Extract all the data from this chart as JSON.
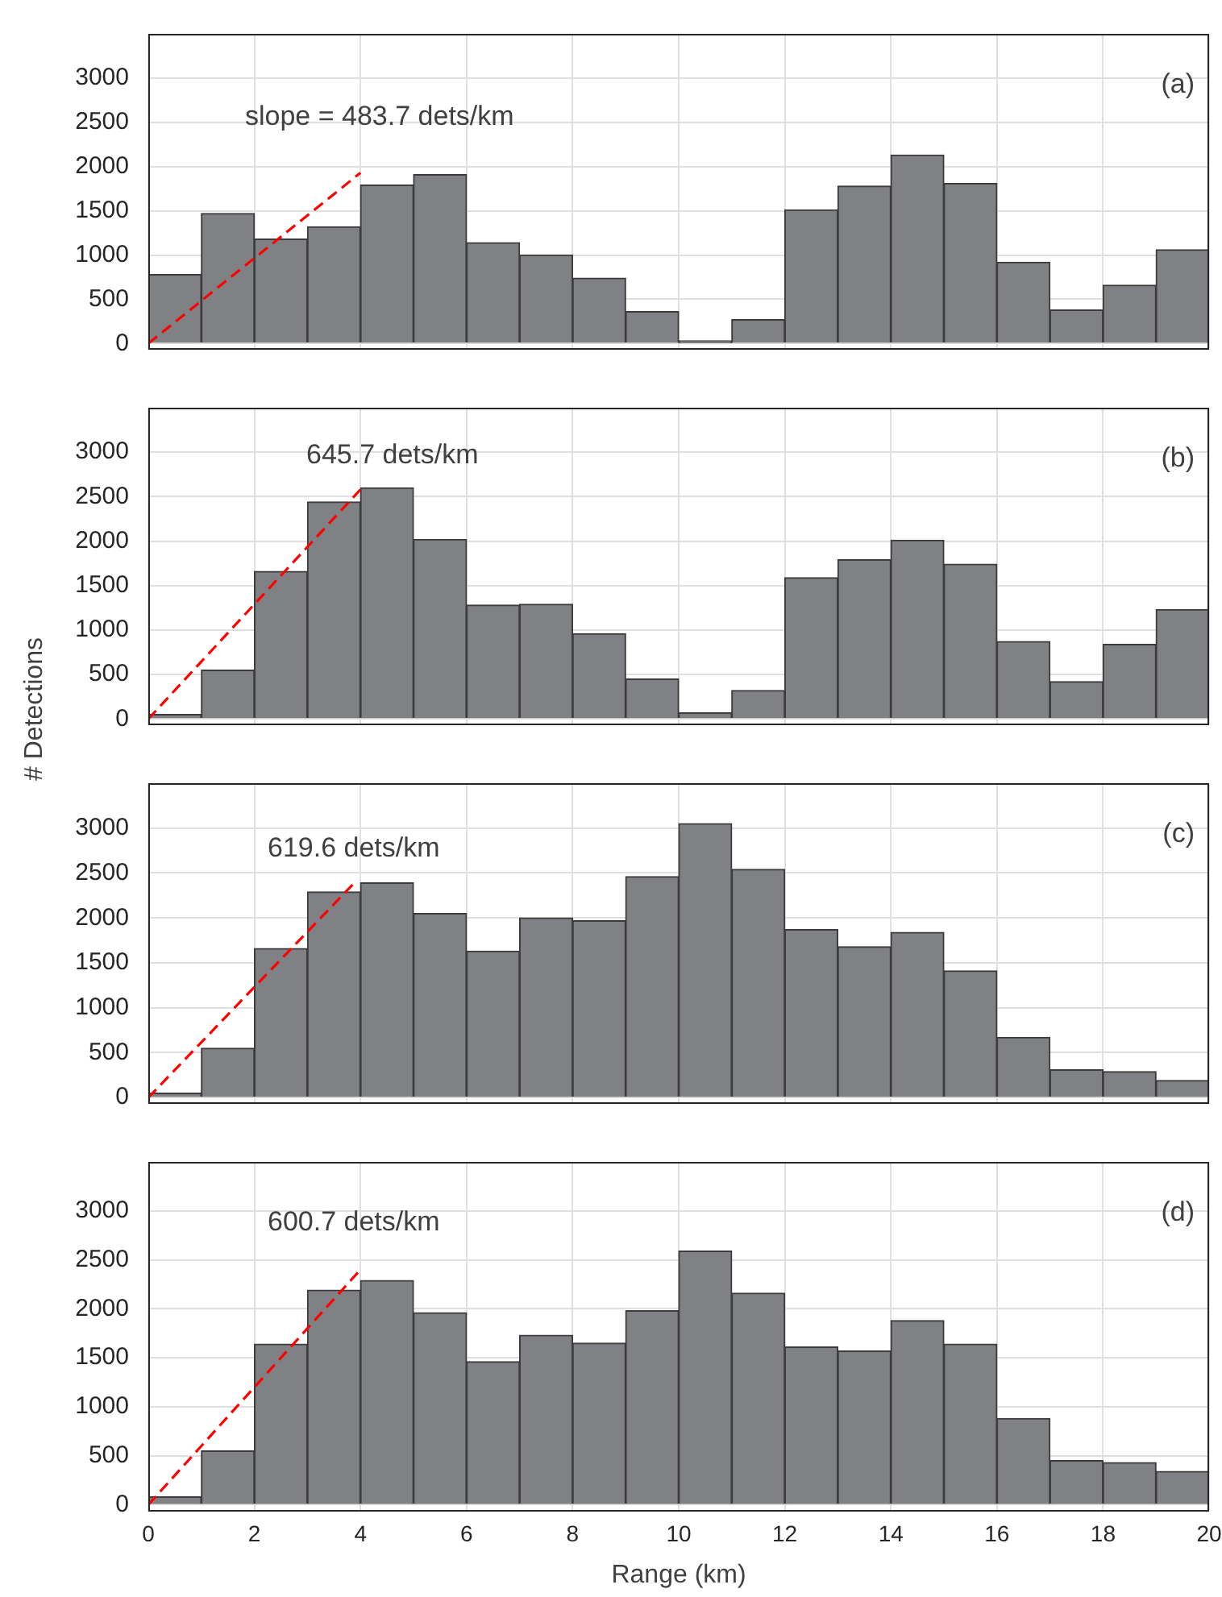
{
  "chart_data": [
    {
      "type": "histogram",
      "annotations": [
        "slope = 483.7 dets/km",
        "(a)"
      ],
      "bins": [
        0,
        1,
        2,
        3,
        4,
        5,
        6,
        7,
        8,
        9,
        10,
        11,
        12,
        13,
        14,
        15,
        16,
        17,
        18,
        19,
        20
      ],
      "xlim": [
        0,
        20
      ],
      "xticks": [
        0,
        2,
        4,
        6,
        8,
        10,
        12,
        14,
        16,
        18,
        20
      ],
      "ylim": [
        -70,
        3500
      ],
      "yticks": [
        0,
        500,
        1000,
        1500,
        2000,
        2500,
        3000
      ],
      "grid": true,
      "tick_labels": "y",
      "series": [
        {
          "color": "#808184",
          "values": [
            780,
            1470,
            1180,
            1320,
            1790,
            1910,
            1140,
            1000,
            740,
            360,
            30,
            270,
            1510,
            1780,
            2130,
            1810,
            920,
            380,
            660,
            1060
          ]
        },
        {
          "type": "line",
          "x": [
            0,
            4
          ],
          "values": [
            0,
            1930
          ],
          "color": "#ff0000",
          "line_style": "dashed"
        }
      ]
    },
    {
      "type": "histogram",
      "ylabel": "# Detections",
      "annotations": [
        "645.7 dets/km",
        "(b)"
      ],
      "bins": [
        0,
        1,
        2,
        3,
        4,
        5,
        6,
        7,
        8,
        9,
        10,
        11,
        12,
        13,
        14,
        15,
        16,
        17,
        18,
        19,
        20
      ],
      "xlim": [
        0,
        20
      ],
      "xticks": [
        0,
        2,
        4,
        6,
        8,
        10,
        12,
        14,
        16,
        18,
        20
      ],
      "ylim": [
        -70,
        3500
      ],
      "yticks": [
        0,
        500,
        1000,
        1500,
        2000,
        2500,
        3000
      ],
      "grid": true,
      "tick_labels": "y",
      "series": [
        {
          "color": "#808184",
          "values": [
            50,
            550,
            1660,
            2440,
            2600,
            2020,
            1280,
            1290,
            960,
            450,
            70,
            320,
            1590,
            1790,
            2010,
            1740,
            870,
            420,
            840,
            1230
          ]
        },
        {
          "type": "line",
          "x": [
            0,
            4
          ],
          "values": [
            0,
            2580
          ],
          "color": "#ff0000",
          "line_style": "dashed"
        }
      ]
    },
    {
      "type": "histogram",
      "annotations": [
        "619.6 dets/km",
        "(c)"
      ],
      "bins": [
        0,
        1,
        2,
        3,
        4,
        5,
        6,
        7,
        8,
        9,
        10,
        11,
        12,
        13,
        14,
        15,
        16,
        17,
        18,
        19,
        20
      ],
      "xlim": [
        0,
        20
      ],
      "xticks": [
        0,
        2,
        4,
        6,
        8,
        10,
        12,
        14,
        16,
        18,
        20
      ],
      "ylim": [
        -70,
        3500
      ],
      "yticks": [
        0,
        500,
        1000,
        1500,
        2000,
        2500,
        3000
      ],
      "grid": true,
      "tick_labels": "y",
      "series": [
        {
          "color": "#808184",
          "values": [
            50,
            550,
            1660,
            2290,
            2390,
            2050,
            1630,
            2000,
            1970,
            2460,
            3050,
            2540,
            1870,
            1680,
            1840,
            1410,
            670,
            310,
            290,
            190
          ]
        },
        {
          "type": "line",
          "x": [
            0,
            3.9
          ],
          "values": [
            0,
            2400
          ],
          "color": "#ff0000",
          "line_style": "dashed"
        }
      ]
    },
    {
      "type": "histogram",
      "xlabel": "Range (km)",
      "annotations": [
        "600.7 dets/km",
        "(d)"
      ],
      "bins": [
        0,
        1,
        2,
        3,
        4,
        5,
        6,
        7,
        8,
        9,
        10,
        11,
        12,
        13,
        14,
        15,
        16,
        17,
        18,
        19,
        20
      ],
      "xlim": [
        0,
        20
      ],
      "xticks": [
        0,
        2,
        4,
        6,
        8,
        10,
        12,
        14,
        16,
        18,
        20
      ],
      "ylim": [
        -70,
        3500
      ],
      "yticks": [
        0,
        500,
        1000,
        1500,
        2000,
        2500,
        3000
      ],
      "grid": true,
      "series": [
        {
          "color": "#808184",
          "values": [
            80,
            550,
            1640,
            2190,
            2290,
            1960,
            1460,
            1730,
            1650,
            1980,
            2590,
            2160,
            1610,
            1570,
            1880,
            1640,
            880,
            450,
            430,
            340
          ]
        },
        {
          "type": "line",
          "x": [
            0,
            4
          ],
          "values": [
            0,
            2400
          ],
          "color": "#ff0000",
          "line_style": "dashed"
        }
      ]
    }
  ]
}
